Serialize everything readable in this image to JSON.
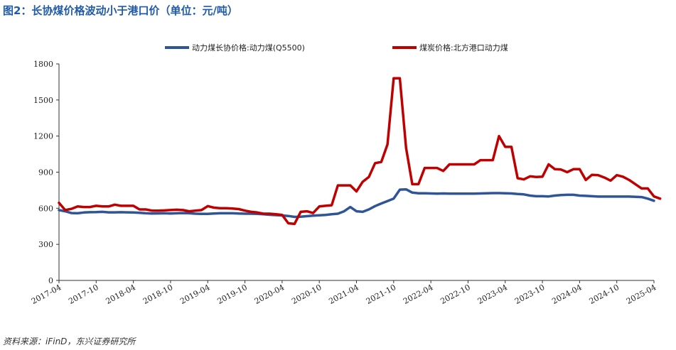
{
  "title": "图2：长协煤价格波动小于港口价（单位：元/吨）",
  "source": "资料来源：iFinD，东兴证券研究所",
  "chart_data": {
    "type": "line",
    "title": "图2：长协煤价格波动小于港口价（单位：元/吨）",
    "xlabel": "",
    "ylabel": "",
    "ylim": [
      0,
      1800
    ],
    "yticks": [
      0,
      300,
      600,
      900,
      1200,
      1500,
      1800
    ],
    "xticks": [
      "2017-04",
      "2017-10",
      "2018-04",
      "2018-10",
      "2019-04",
      "2019-10",
      "2020-04",
      "2020-10",
      "2021-04",
      "2021-10",
      "2022-04",
      "2022-10",
      "2023-04",
      "2023-10",
      "2024-04",
      "2024-10",
      "2025-04"
    ],
    "x_range": [
      "2017-04",
      "2025-04"
    ],
    "legend_position": "top",
    "series": [
      {
        "name": "动力煤长协价格:动力煤(Q5500)",
        "color": "#2f5597",
        "points": [
          [
            "2017-04",
            585
          ],
          [
            "2017-05",
            575
          ],
          [
            "2017-06",
            560
          ],
          [
            "2017-07",
            558
          ],
          [
            "2017-08",
            565
          ],
          [
            "2017-09",
            567
          ],
          [
            "2017-10",
            568
          ],
          [
            "2017-11",
            570
          ],
          [
            "2017-12",
            566
          ],
          [
            "2018-01",
            566
          ],
          [
            "2018-02",
            567
          ],
          [
            "2018-03",
            566
          ],
          [
            "2018-04",
            565
          ],
          [
            "2018-05",
            562
          ],
          [
            "2018-06",
            558
          ],
          [
            "2018-07",
            556
          ],
          [
            "2018-08",
            557
          ],
          [
            "2018-09",
            558
          ],
          [
            "2018-10",
            556
          ],
          [
            "2018-11",
            558
          ],
          [
            "2018-12",
            560
          ],
          [
            "2019-01",
            558
          ],
          [
            "2019-02",
            555
          ],
          [
            "2019-03",
            553
          ],
          [
            "2019-04",
            553
          ],
          [
            "2019-05",
            556
          ],
          [
            "2019-06",
            558
          ],
          [
            "2019-07",
            558
          ],
          [
            "2019-08",
            558
          ],
          [
            "2019-09",
            556
          ],
          [
            "2019-10",
            555
          ],
          [
            "2019-11",
            555
          ],
          [
            "2019-12",
            553
          ],
          [
            "2020-01",
            550
          ],
          [
            "2020-02",
            546
          ],
          [
            "2020-03",
            543
          ],
          [
            "2020-04",
            540
          ],
          [
            "2020-05",
            536
          ],
          [
            "2020-06",
            528
          ],
          [
            "2020-07",
            530
          ],
          [
            "2020-08",
            534
          ],
          [
            "2020-09",
            538
          ],
          [
            "2020-10",
            542
          ],
          [
            "2020-11",
            545
          ],
          [
            "2020-12",
            550
          ],
          [
            "2021-01",
            555
          ],
          [
            "2021-02",
            575
          ],
          [
            "2021-03",
            610
          ],
          [
            "2021-04",
            575
          ],
          [
            "2021-05",
            570
          ],
          [
            "2021-06",
            590
          ],
          [
            "2021-07",
            618
          ],
          [
            "2021-08",
            640
          ],
          [
            "2021-09",
            660
          ],
          [
            "2021-10",
            680
          ],
          [
            "2021-11",
            755
          ],
          [
            "2021-12",
            757
          ],
          [
            "2022-01",
            730
          ],
          [
            "2022-02",
            725
          ],
          [
            "2022-03",
            725
          ],
          [
            "2022-04",
            723
          ],
          [
            "2022-05",
            722
          ],
          [
            "2022-06",
            723
          ],
          [
            "2022-07",
            722
          ],
          [
            "2022-08",
            722
          ],
          [
            "2022-09",
            722
          ],
          [
            "2022-10",
            722
          ],
          [
            "2022-11",
            722
          ],
          [
            "2022-12",
            723
          ],
          [
            "2023-01",
            725
          ],
          [
            "2023-02",
            726
          ],
          [
            "2023-03",
            726
          ],
          [
            "2023-04",
            725
          ],
          [
            "2023-05",
            723
          ],
          [
            "2023-06",
            718
          ],
          [
            "2023-07",
            715
          ],
          [
            "2023-08",
            705
          ],
          [
            "2023-09",
            700
          ],
          [
            "2023-10",
            700
          ],
          [
            "2023-11",
            698
          ],
          [
            "2023-12",
            705
          ],
          [
            "2024-01",
            710
          ],
          [
            "2024-02",
            712
          ],
          [
            "2024-03",
            712
          ],
          [
            "2024-04",
            705
          ],
          [
            "2024-05",
            703
          ],
          [
            "2024-06",
            700
          ],
          [
            "2024-07",
            697
          ],
          [
            "2024-08",
            697
          ],
          [
            "2024-09",
            697
          ],
          [
            "2024-10",
            697
          ],
          [
            "2024-11",
            697
          ],
          [
            "2024-12",
            697
          ],
          [
            "2025-01",
            695
          ],
          [
            "2025-02",
            693
          ],
          [
            "2025-03",
            680
          ],
          [
            "2025-04",
            662
          ]
        ]
      },
      {
        "name": "煤炭价格:北方港口动力煤",
        "color": "#c00000",
        "points": [
          [
            "2017-04",
            645
          ],
          [
            "2017-05",
            585
          ],
          [
            "2017-06",
            595
          ],
          [
            "2017-07",
            615
          ],
          [
            "2017-08",
            610
          ],
          [
            "2017-09",
            610
          ],
          [
            "2017-10",
            620
          ],
          [
            "2017-11",
            615
          ],
          [
            "2017-12",
            615
          ],
          [
            "2018-01",
            630
          ],
          [
            "2018-02",
            620
          ],
          [
            "2018-03",
            620
          ],
          [
            "2018-04",
            620
          ],
          [
            "2018-05",
            590
          ],
          [
            "2018-06",
            590
          ],
          [
            "2018-07",
            580
          ],
          [
            "2018-08",
            580
          ],
          [
            "2018-09",
            582
          ],
          [
            "2018-10",
            585
          ],
          [
            "2018-11",
            588
          ],
          [
            "2018-12",
            585
          ],
          [
            "2019-01",
            575
          ],
          [
            "2019-02",
            580
          ],
          [
            "2019-03",
            585
          ],
          [
            "2019-04",
            618
          ],
          [
            "2019-05",
            605
          ],
          [
            "2019-06",
            600
          ],
          [
            "2019-07",
            600
          ],
          [
            "2019-08",
            598
          ],
          [
            "2019-09",
            593
          ],
          [
            "2019-10",
            580
          ],
          [
            "2019-11",
            570
          ],
          [
            "2019-12",
            565
          ],
          [
            "2020-01",
            555
          ],
          [
            "2020-02",
            555
          ],
          [
            "2020-03",
            550
          ],
          [
            "2020-04",
            545
          ],
          [
            "2020-05",
            475
          ],
          [
            "2020-06",
            470
          ],
          [
            "2020-07",
            570
          ],
          [
            "2020-08",
            575
          ],
          [
            "2020-09",
            560
          ],
          [
            "2020-10",
            615
          ],
          [
            "2020-11",
            620
          ],
          [
            "2020-12",
            625
          ],
          [
            "2021-01",
            790
          ],
          [
            "2021-02",
            790
          ],
          [
            "2021-03",
            790
          ],
          [
            "2021-04",
            740
          ],
          [
            "2021-05",
            820
          ],
          [
            "2021-06",
            860
          ],
          [
            "2021-07",
            975
          ],
          [
            "2021-08",
            985
          ],
          [
            "2021-09",
            1130
          ],
          [
            "2021-10",
            1680
          ],
          [
            "2021-11",
            1680
          ],
          [
            "2021-12",
            1100
          ],
          [
            "2022-01",
            800
          ],
          [
            "2022-02",
            800
          ],
          [
            "2022-03",
            935
          ],
          [
            "2022-04",
            935
          ],
          [
            "2022-05",
            935
          ],
          [
            "2022-06",
            910
          ],
          [
            "2022-07",
            965
          ],
          [
            "2022-08",
            965
          ],
          [
            "2022-09",
            965
          ],
          [
            "2022-10",
            965
          ],
          [
            "2022-11",
            965
          ],
          [
            "2022-12",
            1000
          ],
          [
            "2023-01",
            1000
          ],
          [
            "2023-02",
            1000
          ],
          [
            "2023-03",
            1200
          ],
          [
            "2023-04",
            1110
          ],
          [
            "2023-05",
            1110
          ],
          [
            "2023-06",
            850
          ],
          [
            "2023-07",
            840
          ],
          [
            "2023-08",
            865
          ],
          [
            "2023-09",
            860
          ],
          [
            "2023-10",
            862
          ],
          [
            "2023-11",
            965
          ],
          [
            "2023-12",
            925
          ],
          [
            "2024-01",
            922
          ],
          [
            "2024-02",
            900
          ],
          [
            "2024-03",
            925
          ],
          [
            "2024-04",
            925
          ],
          [
            "2024-05",
            835
          ],
          [
            "2024-06",
            878
          ],
          [
            "2024-07",
            875
          ],
          [
            "2024-08",
            855
          ],
          [
            "2024-09",
            830
          ],
          [
            "2024-10",
            875
          ],
          [
            "2024-11",
            862
          ],
          [
            "2024-12",
            835
          ],
          [
            "2025-01",
            800
          ],
          [
            "2025-02",
            765
          ],
          [
            "2025-03",
            765
          ],
          [
            "2025-04",
            698
          ],
          [
            "2025-05",
            680
          ]
        ]
      }
    ]
  }
}
